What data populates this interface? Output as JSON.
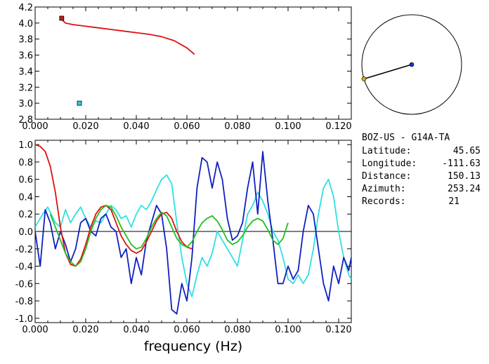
{
  "station": {
    "title": "BOZ-US - G14A-TA",
    "latitude_label": "Latitude:",
    "latitude": "45.65",
    "longitude_label": "Longitude:",
    "longitude": "-111.63",
    "distance_label": "Distance:",
    "distance": "150.13",
    "azimuth_label": "Azimuth:",
    "azimuth": "253.24",
    "records_label": "Records:",
    "records": "21"
  },
  "compass": {
    "azimuth_deg": 253.24,
    "colors": {
      "line": "#000000",
      "center": "#1e2fd0",
      "end": "#c8b400"
    }
  },
  "chart_data": [
    {
      "type": "scatter",
      "xlim": [
        0.0,
        0.125
      ],
      "ylim": [
        2.8,
        4.2
      ],
      "x_ticks": [
        "0.000",
        "0.020",
        "0.040",
        "0.060",
        "0.080",
        "0.100",
        "0.120"
      ],
      "y_ticks": [
        "2.8",
        "3.0",
        "3.2",
        "3.4",
        "3.6",
        "3.8",
        "4.0",
        "4.2"
      ],
      "series": [
        {
          "color": "#e01010",
          "mode": "line",
          "x": [
            0.01,
            0.012,
            0.015,
            0.02,
            0.025,
            0.03,
            0.035,
            0.04,
            0.045,
            0.05,
            0.055,
            0.06,
            0.063
          ],
          "y": [
            4.06,
            4.0,
            3.98,
            3.96,
            3.94,
            3.92,
            3.9,
            3.88,
            3.86,
            3.83,
            3.78,
            3.69,
            3.61
          ]
        },
        {
          "color": "#c02020",
          "mode": "marker",
          "x": [
            0.0105
          ],
          "y": [
            4.06
          ]
        },
        {
          "color": "#30d0d0",
          "mode": "marker",
          "x": [
            0.0175
          ],
          "y": [
            3.0
          ]
        }
      ]
    },
    {
      "type": "line",
      "xlabel": "frequency (Hz)",
      "xlim": [
        0.0,
        0.125
      ],
      "ylim": [
        -1.05,
        1.05
      ],
      "x_ticks": [
        "0.000",
        "0.020",
        "0.040",
        "0.060",
        "0.080",
        "0.100",
        "0.120"
      ],
      "y_ticks": [
        "-1.0",
        "-0.8",
        "-0.6",
        "-0.4",
        "-0.2",
        "0.0",
        "0.2",
        "0.4",
        "0.6",
        "0.8",
        "1.0"
      ],
      "zero_line": true,
      "series": [
        {
          "color": "#30e0e0",
          "x": [
            0.0,
            0.003,
            0.005,
            0.008,
            0.01,
            0.012,
            0.014,
            0.016,
            0.018,
            0.02,
            0.022,
            0.024,
            0.026,
            0.028,
            0.03,
            0.032,
            0.034,
            0.036,
            0.038,
            0.04,
            0.042,
            0.044,
            0.046,
            0.048,
            0.05,
            0.052,
            0.054,
            0.056,
            0.058,
            0.06,
            0.062,
            0.064,
            0.066,
            0.068,
            0.07,
            0.072,
            0.074,
            0.076,
            0.078,
            0.08,
            0.082,
            0.084,
            0.086,
            0.088,
            0.09,
            0.092,
            0.094,
            0.096,
            0.098,
            0.1,
            0.102,
            0.104,
            0.106,
            0.108,
            0.11,
            0.112,
            0.114,
            0.116,
            0.118,
            0.12,
            0.122,
            0.124,
            0.125
          ],
          "y": [
            0.05,
            0.2,
            0.28,
            0.1,
            0.05,
            0.25,
            0.1,
            0.2,
            0.28,
            0.15,
            0.05,
            0.12,
            0.1,
            0.2,
            0.3,
            0.25,
            0.15,
            0.18,
            0.05,
            0.2,
            0.3,
            0.25,
            0.35,
            0.48,
            0.6,
            0.65,
            0.55,
            0.1,
            -0.3,
            -0.6,
            -0.75,
            -0.5,
            -0.3,
            -0.4,
            -0.25,
            0.0,
            -0.1,
            -0.2,
            -0.3,
            -0.4,
            -0.1,
            0.2,
            0.3,
            0.45,
            0.35,
            0.2,
            0.0,
            -0.1,
            -0.3,
            -0.55,
            -0.6,
            -0.5,
            -0.6,
            -0.5,
            -0.2,
            0.2,
            0.5,
            0.6,
            0.4,
            0.0,
            -0.3,
            -0.5,
            -0.55
          ]
        },
        {
          "color": "#1020c0",
          "x": [
            0.0,
            0.002,
            0.004,
            0.006,
            0.008,
            0.01,
            0.012,
            0.014,
            0.016,
            0.018,
            0.02,
            0.022,
            0.024,
            0.026,
            0.028,
            0.03,
            0.032,
            0.034,
            0.036,
            0.038,
            0.04,
            0.042,
            0.044,
            0.046,
            0.048,
            0.05,
            0.052,
            0.054,
            0.056,
            0.058,
            0.06,
            0.062,
            0.064,
            0.066,
            0.068,
            0.07,
            0.072,
            0.074,
            0.076,
            0.078,
            0.08,
            0.082,
            0.084,
            0.086,
            0.088,
            0.09,
            0.092,
            0.094,
            0.096,
            0.098,
            0.1,
            0.102,
            0.104,
            0.106,
            0.108,
            0.11,
            0.112,
            0.114,
            0.116,
            0.118,
            0.12,
            0.122,
            0.124,
            0.125
          ],
          "y": [
            0.0,
            -0.4,
            0.25,
            0.1,
            -0.2,
            0.0,
            -0.15,
            -0.35,
            -0.2,
            0.1,
            0.15,
            0.0,
            -0.05,
            0.15,
            0.2,
            0.05,
            0.0,
            -0.3,
            -0.2,
            -0.6,
            -0.3,
            -0.5,
            -0.1,
            0.1,
            0.3,
            0.2,
            -0.2,
            -0.9,
            -0.95,
            -0.6,
            -0.8,
            -0.3,
            0.5,
            0.85,
            0.8,
            0.5,
            0.8,
            0.6,
            0.15,
            -0.1,
            -0.05,
            0.1,
            0.5,
            0.8,
            0.2,
            0.92,
            0.35,
            -0.1,
            -0.6,
            -0.6,
            -0.4,
            -0.55,
            -0.45,
            0.0,
            0.3,
            0.2,
            -0.2,
            -0.6,
            -0.8,
            -0.4,
            -0.6,
            -0.3,
            -0.45,
            -0.3
          ]
        },
        {
          "color": "#e01010",
          "x": [
            0.0,
            0.002,
            0.004,
            0.006,
            0.008,
            0.01,
            0.012,
            0.014,
            0.016,
            0.018,
            0.02,
            0.022,
            0.024,
            0.026,
            0.028,
            0.03,
            0.032,
            0.034,
            0.036,
            0.038,
            0.04,
            0.042,
            0.044,
            0.046,
            0.048,
            0.05,
            0.052,
            0.054,
            0.056,
            0.058,
            0.06,
            0.062
          ],
          "y": [
            1.0,
            0.98,
            0.92,
            0.75,
            0.45,
            0.05,
            -0.25,
            -0.38,
            -0.4,
            -0.32,
            -0.15,
            0.05,
            0.2,
            0.28,
            0.3,
            0.25,
            0.1,
            -0.05,
            -0.15,
            -0.22,
            -0.25,
            -0.22,
            -0.12,
            0.0,
            0.12,
            0.2,
            0.22,
            0.15,
            0.0,
            -0.12,
            -0.18,
            -0.2
          ]
        },
        {
          "color": "#20c020",
          "x": [
            0.006,
            0.008,
            0.01,
            0.012,
            0.014,
            0.016,
            0.018,
            0.02,
            0.022,
            0.024,
            0.026,
            0.028,
            0.03,
            0.032,
            0.034,
            0.036,
            0.038,
            0.04,
            0.042,
            0.044,
            0.046,
            0.048,
            0.05,
            0.052,
            0.054,
            0.056,
            0.058,
            0.06,
            0.062,
            0.064,
            0.066,
            0.068,
            0.07,
            0.072,
            0.074,
            0.076,
            0.078,
            0.08,
            0.082,
            0.084,
            0.086,
            0.088,
            0.09,
            0.092,
            0.094,
            0.096,
            0.098,
            0.1
          ],
          "y": [
            0.2,
            0.05,
            -0.1,
            -0.25,
            -0.35,
            -0.4,
            -0.35,
            -0.2,
            0.0,
            0.15,
            0.25,
            0.3,
            0.28,
            0.18,
            0.05,
            -0.05,
            -0.15,
            -0.2,
            -0.18,
            -0.08,
            0.05,
            0.15,
            0.22,
            0.18,
            0.05,
            -0.08,
            -0.15,
            -0.18,
            -0.12,
            0.0,
            0.1,
            0.15,
            0.18,
            0.12,
            0.02,
            -0.1,
            -0.15,
            -0.12,
            -0.05,
            0.05,
            0.12,
            0.15,
            0.12,
            0.02,
            -0.1,
            -0.15,
            -0.08,
            0.1
          ]
        }
      ]
    }
  ]
}
